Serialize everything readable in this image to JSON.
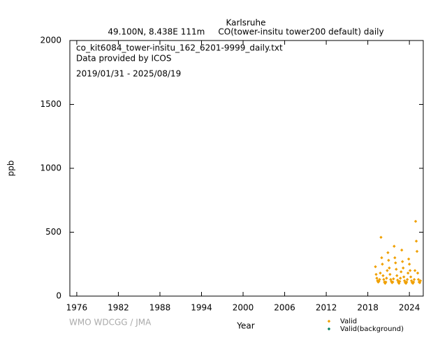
{
  "chart_data": {
    "type": "scatter",
    "title": "Karlsruhe",
    "subtitle": "49.100N, 8.438E 111m     CO(tower-insitu tower200 default) daily",
    "annotations": [
      "co_kit6084_tower-insitu_162_6201-9999_daily.txt",
      "Data provided by ICOS",
      "2019/01/31 - 2025/08/19"
    ],
    "x_label": "Year",
    "y_label": "ppb",
    "credit": "WMO WDCGG / JMA",
    "xlim": [
      1975,
      2026
    ],
    "xticks": [
      1976,
      1982,
      1988,
      1994,
      2000,
      2006,
      2012,
      2018,
      2024
    ],
    "ylim": [
      0,
      2000
    ],
    "yticks": [
      0,
      500,
      1000,
      1500,
      2000
    ],
    "series": [
      {
        "name": "Valid",
        "color": "#f0a000",
        "x": [
          2019.1,
          2019.2,
          2019.3,
          2019.4,
          2019.5,
          2019.6,
          2019.7,
          2019.8,
          2019.9,
          2020.0,
          2020.1,
          2020.2,
          2020.3,
          2020.4,
          2020.5,
          2020.6,
          2020.7,
          2020.8,
          2020.9,
          2021.0,
          2021.1,
          2021.2,
          2021.3,
          2021.4,
          2021.5,
          2021.6,
          2021.7,
          2021.8,
          2021.9,
          2022.0,
          2022.1,
          2022.2,
          2022.3,
          2022.4,
          2022.5,
          2022.6,
          2022.7,
          2022.8,
          2022.9,
          2023.0,
          2023.1,
          2023.2,
          2023.3,
          2023.4,
          2023.5,
          2023.6,
          2023.7,
          2023.8,
          2023.9,
          2024.0,
          2024.1,
          2024.2,
          2024.3,
          2024.4,
          2024.5,
          2024.6,
          2024.7,
          2024.8,
          2024.9,
          2025.0,
          2025.1,
          2025.2,
          2025.3,
          2025.4,
          2025.5,
          2025.6
        ],
        "values": [
          230,
          170,
          140,
          120,
          110,
          115,
          130,
          180,
          460,
          300,
          250,
          160,
          130,
          110,
          100,
          110,
          140,
          200,
          340,
          280,
          220,
          170,
          130,
          115,
          105,
          110,
          135,
          390,
          300,
          260,
          210,
          160,
          125,
          110,
          100,
          115,
          140,
          190,
          360,
          270,
          220,
          150,
          120,
          105,
          100,
          110,
          130,
          180,
          290,
          250,
          200,
          150,
          120,
          105,
          100,
          110,
          130,
          200,
          585,
          430,
          350,
          180,
          130,
          110,
          105,
          120
        ]
      },
      {
        "name": "Valid(background)",
        "color": "#008060",
        "x": [],
        "values": []
      }
    ]
  }
}
